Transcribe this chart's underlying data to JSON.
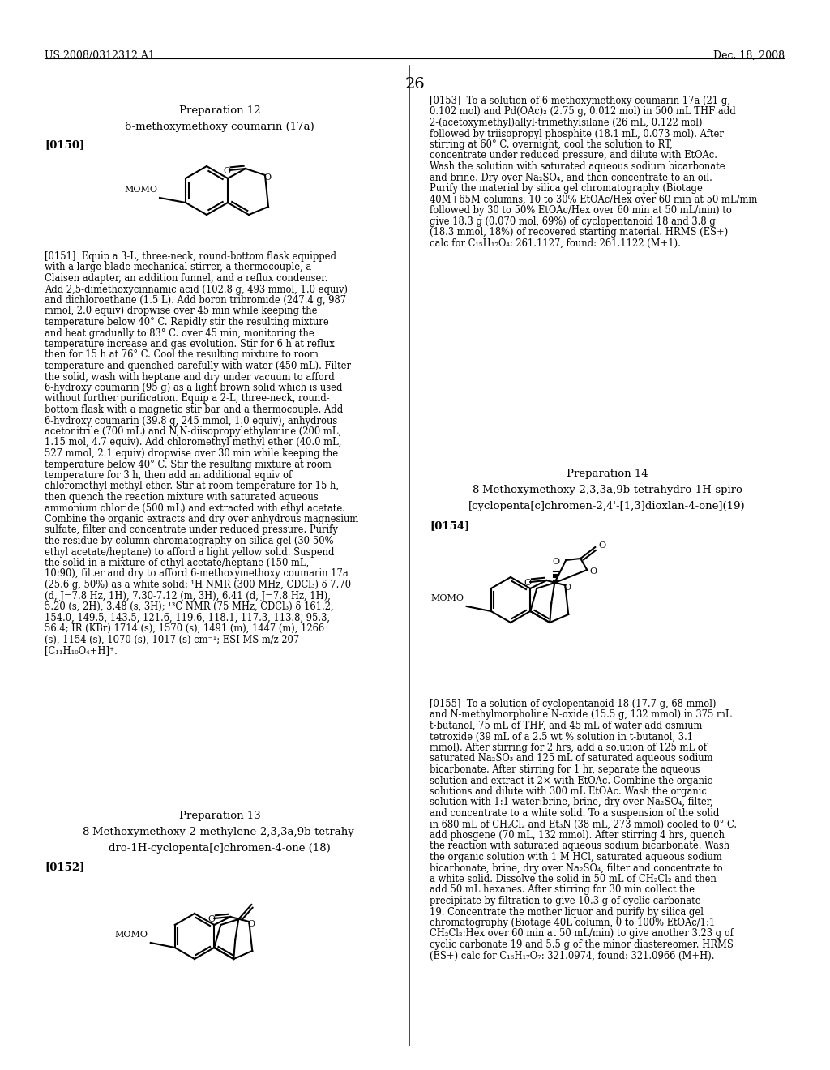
{
  "page_header_left": "US 2008/0312312 A1",
  "page_header_right": "Dec. 18, 2008",
  "page_number": "26",
  "background_color": "#ffffff",
  "text_color": "#000000",
  "prep12_title": "Preparation 12",
  "prep12_subtitle": "6-methoxymethoxy coumarin (17a)",
  "prep12_tag": "[0150]",
  "prep13_title": "Preparation 13",
  "prep13_sub1": "8-Methoxymethoxy-2-methylene-2,3,3a,9b-tetrahy-",
  "prep13_sub2": "dro-1H-cyclopenta[c]chromen-4-one (18)",
  "prep13_tag": "[0152]",
  "prep14_title": "Preparation 14",
  "prep14_sub1": "8-Methoxymethoxy-2,3,3a,9b-tetrahydro-1H-spiro",
  "prep14_sub2": "[cyclopenta[c]chromen-2,4'-[1,3]dioxlan-4-one](19)",
  "prep14_tag": "[0154]",
  "text_0151": "[0151]  Equip a 3-L, three-neck, round-bottom flask equipped with a large blade mechanical stirrer, a thermocouple, a Claisen adapter, an addition funnel, and a reflux condenser. Add 2,5-dimethoxycinnamic acid (102.8 g, 493 mmol, 1.0 equiv) and dichloroethane (1.5 L). Add boron tribromide (247.4 g, 987 mmol, 2.0 equiv) dropwise over 45 min while keeping the temperature below 40° C. Rapidly stir the resulting mixture and heat gradually to 83° C. over 45 min, monitoring the temperature increase and gas evolution. Stir for 6 h at reflux then for 15 h at 76° C. Cool the resulting mixture to room temperature and quenched carefully with water (450 mL). Filter the solid, wash with heptane and dry under vacuum to afford 6-hydroxy coumarin (95 g) as a light brown solid which is used without further purification. Equip a 2-L, three-neck, round-bottom flask with a magnetic stir bar and a thermocouple. Add 6-hydroxy coumarin (39.8 g, 245 mmol, 1.0 equiv), anhydrous acetonitrile (700 mL) and N,N-diisopropylethylamine (200 mL, 1.15 mol, 4.7 equiv). Add chloromethyl methyl ether (40.0 mL, 527 mmol, 2.1 equiv) dropwise over 30 min while keeping the temperature below 40° C. Stir the resulting mixture at room temperature for 3 h, then add an additional equiv of chloromethyl methyl ether. Stir at room temperature for 15 h, then quench the reaction mixture with saturated aqueous ammonium chloride (500 mL) and extracted with ethyl acetate. Combine the organic extracts and dry over anhydrous magnesium sulfate, filter and concentrate under reduced pressure. Purify the residue by column chromatography on silica gel (30-50% ethyl acetate/heptane) to afford a light yellow solid. Suspend the solid in a mixture of ethyl acetate/heptane (150 mL, 10:90), filter and dry to afford 6-methoxymethoxy coumarin 17a (25.6 g, 50%) as a white solid: ¹H NMR (300 MHz, CDCl₃) δ 7.70 (d, J=7.8 Hz, 1H), 7.30-7.12 (m, 3H), 6.41 (d, J=7.8 Hz, 1H), 5.20 (s, 2H), 3.48 (s, 3H); ¹³C NMR (75 MHz, CDCl₃) δ 161.2, 154.0, 149.5, 143.5, 121.6, 119.6, 118.1, 117.3, 113.8, 95.3, 56.4; IR (KBr) 1714 (s), 1570 (s), 1491 (m), 1447 (m), 1266 (s), 1154 (s), 1070 (s), 1017 (s) cm⁻¹; ESI MS m/z 207 [C₁₁H₁₀O₄+H]⁺.",
  "text_0153": "[0153]  To a solution of 6-methoxymethoxy coumarin 17a (21 g, 0.102 mol) and Pd(OAc)₂ (2.75 g, 0.012 mol) in 500 mL THF add 2-(acetoxymethyl)allyl-trimethylsilane (26 mL, 0.122 mol) followed by triisopropyl phosphite (18.1 mL, 0.073 mol). After stirring at 60° C. overnight, cool the solution to RT, concentrate under reduced pressure, and dilute with EtOAc. Wash the solution with saturated aqueous sodium bicarbonate and brine. Dry over Na₂SO₄, and then concentrate to an oil. Purify the material by silica gel chromatography (Biotage 40M+65M columns, 10 to 30% EtOAc/Hex over 60 min at 50 mL/min followed by 30 to 50% EtOAc/Hex over 60 min at 50 mL/min) to give 18.3 g (0.070 mol, 69%) of cyclopentanoid 18 and 3.8 g (18.3 mmol, 18%) of recovered starting material. HRMS (ES+) calc for C₁₅H₁₇O₄: 261.1127, found: 261.1122 (M+1).",
  "text_0155": "[0155]  To a solution of cyclopentanoid 18 (17.7 g, 68 mmol) and N-methylmorpholine N-oxide (15.5 g, 132 mmol) in 375 mL t-butanol, 75 mL of THF, and 45 mL of water add osmium tetroxide (39 mL of a 2.5 wt % solution in t-butanol, 3.1 mmol). After stirring for 2 hrs, add a solution of 125 mL of saturated Na₂SO₃ and 125 mL of saturated aqueous sodium bicarbonate. After stirring for 1 hr, separate the aqueous solution and extract it 2× with EtOAc. Combine the organic solutions and dilute with 300 mL EtOAc. Wash the organic solution with 1:1 water:brine, brine, dry over Na₂SO₄, filter, and concentrate to a white solid. To a suspension of the solid in 680 mL of CH₂Cl₂ and Et₃N (38 mL, 273 mmol) cooled to 0° C. add phosgene (70 mL, 132 mmol). After stirring 4 hrs, quench the reaction with saturated aqueous sodium bicarbonate. Wash the organic solution with 1 M HCl, saturated aqueous sodium bicarbonate, brine, dry over Na₂SO₄, filter and concentrate to a white solid. Dissolve the solid in 50 mL of CH₂Cl₂ and then add 50 mL hexanes. After stirring for 30 min collect the precipitate by filtration to give 10.3 g of cyclic carbonate 19. Concentrate the mother liquor and purify by silica gel chromatography (Biotage 40L column, 0 to 100% EtOAc/1:1 CH₂Cl₂:Hex over 60 min at 50 mL/min) to give another 3.23 g of cyclic carbonate 19 and 5.5 g of the minor diastereomer. HRMS (ES+) calc for C₁₆H₁₇O₇: 321.0974, found: 321.0966 (M+H)."
}
